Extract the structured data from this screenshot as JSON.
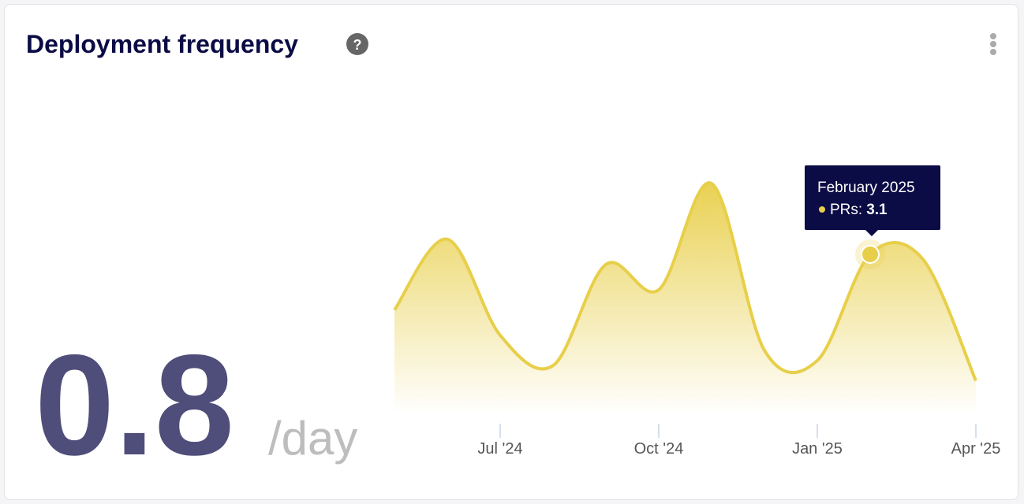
{
  "header": {
    "title": "Deployment frequency",
    "help_icon": "?"
  },
  "headline": {
    "value": "0.8",
    "unit": "/day"
  },
  "chart_data": {
    "type": "area",
    "categories": [
      null,
      null,
      "Jul '24",
      null,
      null,
      "Oct '24",
      null,
      null,
      "Jan '25",
      null,
      null,
      "Apr '25"
    ],
    "series": [
      {
        "name": "PRs",
        "color": "#e8cf4a",
        "values": [
          2.0,
          3.4,
          1.5,
          0.9,
          2.9,
          2.4,
          4.5,
          1.2,
          1.0,
          3.1,
          3.0,
          0.6
        ]
      }
    ],
    "ylim": [
      0,
      5
    ],
    "tooltip": {
      "title": "February 2025"
    }
  }
}
